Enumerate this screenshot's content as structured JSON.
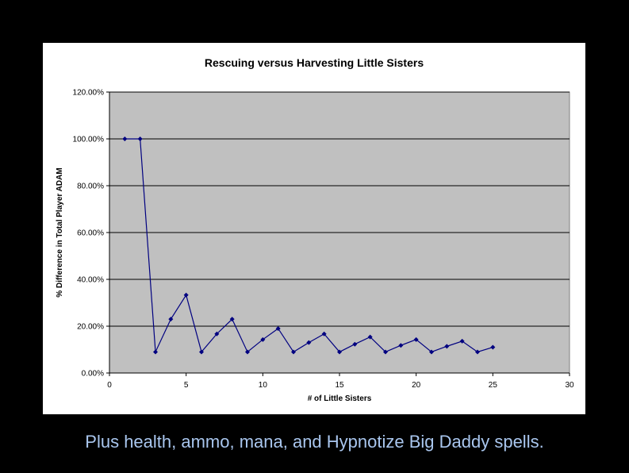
{
  "caption": "Plus health, ammo, mana, and Hypnotize Big Daddy spells.",
  "chart_data": {
    "type": "line",
    "title": "Rescuing versus Harvesting Little Sisters",
    "xlabel": "# of Little Sisters",
    "ylabel": "% Difference in Total Player ADAM",
    "xlim": [
      0,
      30
    ],
    "ylim": [
      0,
      1.2
    ],
    "x_ticks": [
      0,
      5,
      10,
      15,
      20,
      25,
      30
    ],
    "x_tick_labels": [
      "0",
      "5",
      "10",
      "15",
      "20",
      "25",
      "30"
    ],
    "y_ticks": [
      0,
      0.2,
      0.4,
      0.6,
      0.8,
      1.0,
      1.2
    ],
    "y_tick_labels": [
      "0.00%",
      "20.00%",
      "40.00%",
      "60.00%",
      "80.00%",
      "100.00%",
      "120.00%"
    ],
    "grid": true,
    "legend": "none",
    "series": [
      {
        "x": [
          1,
          2,
          3,
          4,
          5,
          6,
          7,
          8,
          9,
          10,
          11,
          12,
          13,
          14,
          15,
          16,
          17,
          18,
          19,
          20,
          21,
          22,
          23,
          24,
          25
        ],
        "y": [
          1.0,
          1.0,
          0.09,
          0.23,
          0.333,
          0.09,
          0.167,
          0.23,
          0.09,
          0.143,
          0.19,
          0.09,
          0.13,
          0.167,
          0.09,
          0.123,
          0.154,
          0.09,
          0.118,
          0.143,
          0.09,
          0.114,
          0.136,
          0.09,
          0.11
        ]
      }
    ],
    "colors": {
      "plot_bg": "#c0c0c0",
      "line": "#000080",
      "grid": "#000000"
    }
  }
}
